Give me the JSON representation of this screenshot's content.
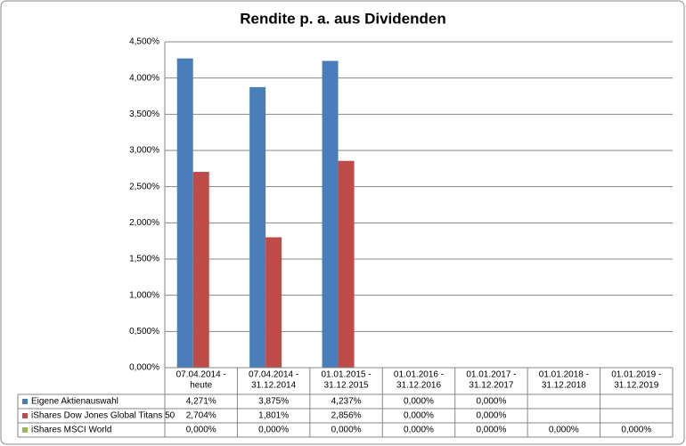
{
  "chart_data": {
    "type": "bar",
    "title": "Rendite p. a. aus Dividenden",
    "categories": [
      [
        "07.04.2014 -",
        "heute"
      ],
      [
        "07.04.2014 -",
        "31.12.2014"
      ],
      [
        "01.01.2015 -",
        "31.12.2015"
      ],
      [
        "01.01.2016 -",
        "31.12.2016"
      ],
      [
        "01.01.2017 -",
        "31.12.2017"
      ],
      [
        "01.01.2018 -",
        "31.12.2018"
      ],
      [
        "01.01.2019 -",
        "31.12.2019"
      ]
    ],
    "series": [
      {
        "name": "Eigene Aktienauswahl",
        "color": "#4a7ebb",
        "values": [
          4.271,
          3.875,
          4.237,
          0,
          0,
          null,
          null
        ],
        "value_labels": [
          "4,271%",
          "3,875%",
          "4,237%",
          "0,000%",
          "0,000%",
          null,
          null
        ]
      },
      {
        "name": "iShares Dow Jones Global Titans 50",
        "color": "#be4b48",
        "values": [
          2.704,
          1.801,
          2.856,
          0,
          0,
          null,
          null
        ],
        "value_labels": [
          "2,704%",
          "1,801%",
          "2,856%",
          "0,000%",
          "0,000%",
          null,
          null
        ]
      },
      {
        "name": "iShares MSCI World",
        "color": "#98b954",
        "values": [
          0,
          0,
          0,
          0,
          0,
          0,
          0
        ],
        "value_labels": [
          "0,000%",
          "0,000%",
          "0,000%",
          "0,000%",
          "0,000%",
          "0,000%",
          "0,000%"
        ]
      }
    ],
    "ylim": [
      0,
      4.5
    ],
    "yticks": [
      {
        "value": 0,
        "label": "0,000%"
      },
      {
        "value": 0.5,
        "label": "0,500%"
      },
      {
        "value": 1,
        "label": "1,000%"
      },
      {
        "value": 1.5,
        "label": "1,500%"
      },
      {
        "value": 2,
        "label": "2,000%"
      },
      {
        "value": 2.5,
        "label": "2,500%"
      },
      {
        "value": 3,
        "label": "3,000%"
      },
      {
        "value": 3.5,
        "label": "3,500%"
      },
      {
        "value": 4,
        "label": "4,000%"
      },
      {
        "value": 4.5,
        "label": "4,500%"
      }
    ],
    "grid": true
  }
}
